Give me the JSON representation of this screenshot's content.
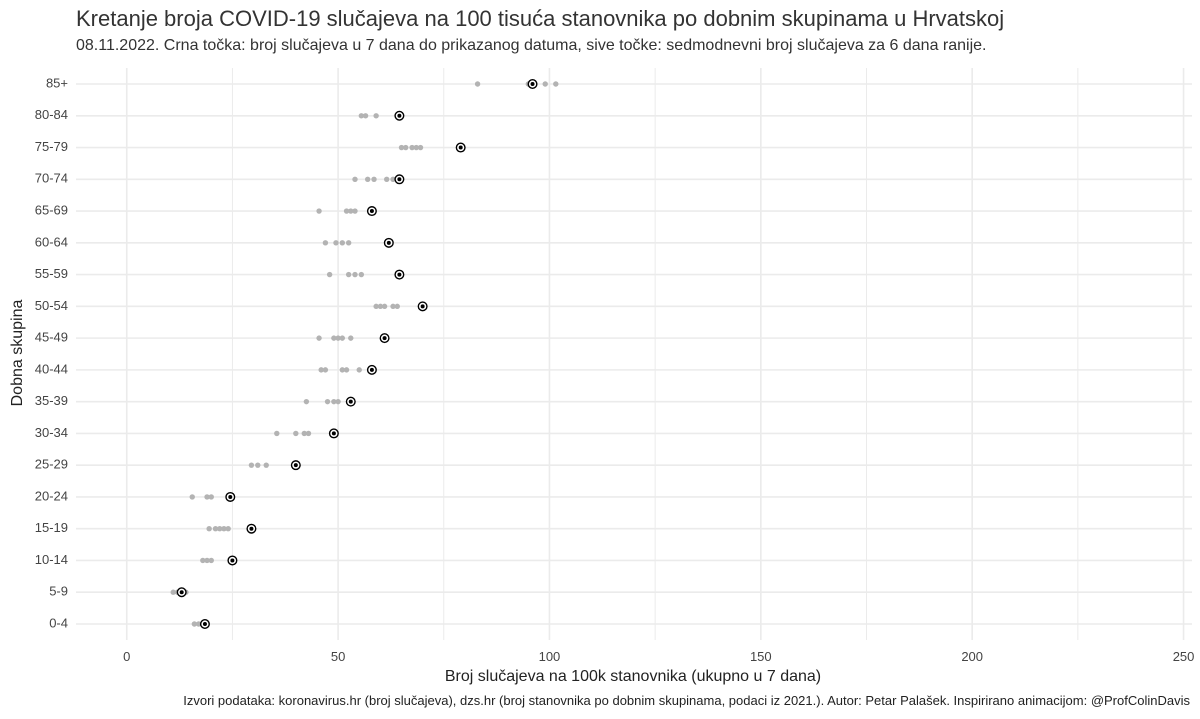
{
  "chart_data": {
    "type": "scatter",
    "title": "Kretanje broja COVID-19 slučajeva na 100 tisuća stanovnika po dobnim skupinama u Hrvatskoj",
    "subtitle": "08.11.2022. Crna točka: broj slučajeva u 7 dana do prikazanog datuma, sive točke: sedmodnevni broj slučajeva za 6 dana ranije.",
    "xlabel": "Broj slučajeva na 100k stanovnika (ukupno u 7 dana)",
    "ylabel": "Dobna skupina",
    "caption": "Izvori podataka: koronavirus.hr (broj slučajeva), dzs.hr (broj stanovnika po dobnim skupinama, podaci iz 2021.). Autor: Petar Palašek. Inspirirano animacijom: @ProfColinDavis",
    "xlim": [
      -12,
      252
    ],
    "x_ticks": [
      0,
      50,
      100,
      150,
      200,
      250
    ],
    "grid": true,
    "categories": [
      "0-4",
      "5-9",
      "10-14",
      "15-19",
      "20-24",
      "25-29",
      "30-34",
      "35-39",
      "40-44",
      "45-49",
      "50-54",
      "55-59",
      "60-64",
      "65-69",
      "70-74",
      "75-79",
      "80-84",
      "85+"
    ],
    "current": [
      18.5,
      13.0,
      25.0,
      29.5,
      24.5,
      40.0,
      49.0,
      53.0,
      58.0,
      61.0,
      70.0,
      64.5,
      62.0,
      58.0,
      64.5,
      79.0,
      64.5,
      96.0
    ],
    "previous": [
      [
        16,
        17,
        18,
        19
      ],
      [
        11,
        12,
        13,
        14
      ],
      [
        18,
        19,
        20
      ],
      [
        19.5,
        21,
        22,
        23,
        24
      ],
      [
        15.5,
        19,
        20
      ],
      [
        29.5,
        31,
        33
      ],
      [
        35.5,
        40,
        42,
        43
      ],
      [
        42.5,
        47.5,
        49,
        50
      ],
      [
        46,
        47,
        51,
        52,
        55
      ],
      [
        45.5,
        49,
        50,
        51,
        53
      ],
      [
        59,
        60,
        61,
        63,
        64
      ],
      [
        48,
        52.5,
        54,
        55.5
      ],
      [
        47,
        49.5,
        51,
        52.5
      ],
      [
        45.5,
        52,
        53,
        54
      ],
      [
        54,
        57,
        58.5,
        61.5,
        63
      ],
      [
        65,
        66,
        67.5,
        68.5,
        69.5
      ],
      [
        55.5,
        56.5,
        59
      ],
      [
        83,
        95,
        99,
        101.5
      ]
    ],
    "colors": {
      "current": "#000000",
      "previous": "#b3b3b3",
      "grid": "#ebebeb"
    }
  }
}
